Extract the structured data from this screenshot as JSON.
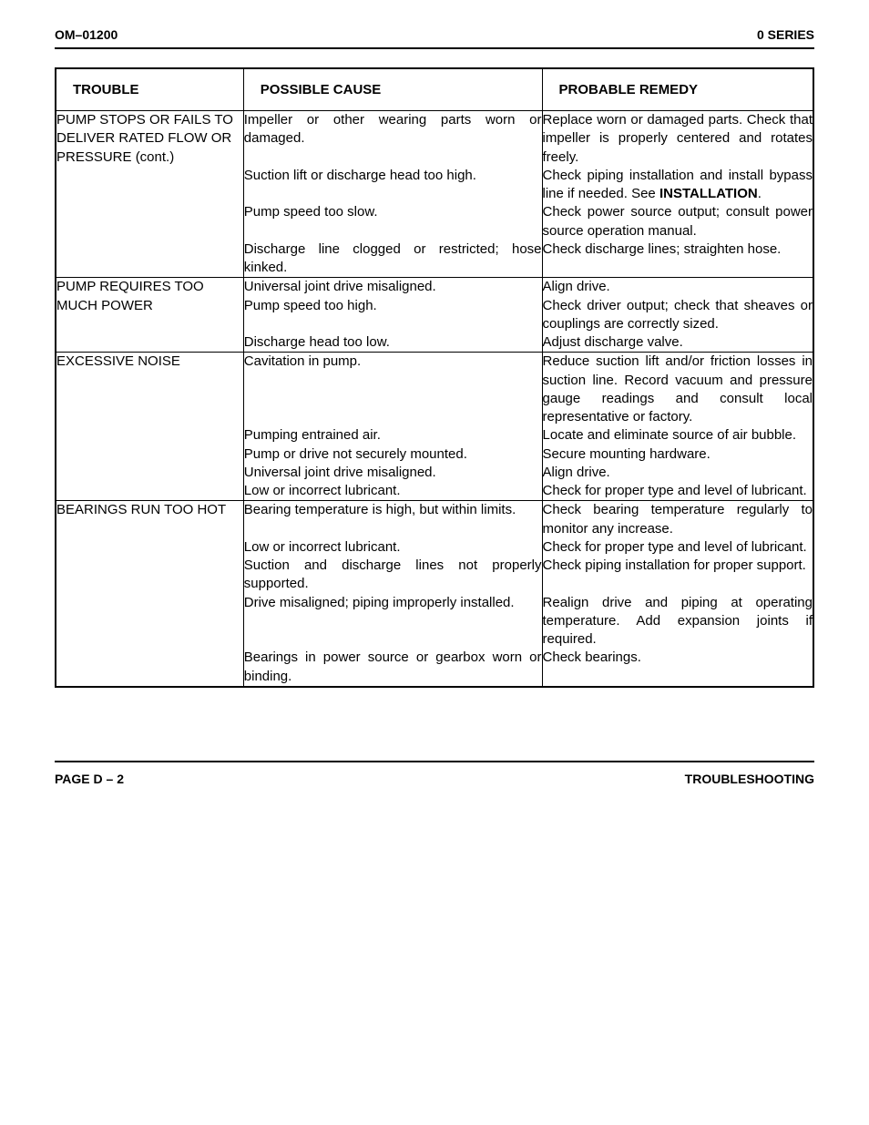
{
  "header": {
    "left": "OM–01200",
    "right": "0 SERIES"
  },
  "columns": {
    "trouble": "TROUBLE",
    "cause": "POSSIBLE CAUSE",
    "remedy": "PROBABLE REMEDY"
  },
  "sections": [
    {
      "trouble": "PUMP STOPS OR FAILS TO DELIVER RATED FLOW OR PRESSURE (cont.)",
      "rows": [
        {
          "cause": "Impeller or other wearing parts worn or damaged.",
          "remedy": "Replace worn or damaged parts. Check that impeller is properly centered and rotates freely."
        },
        {
          "cause": "Suction lift or discharge head too high.",
          "remedy_html": "Check piping installation and install bypass line if needed. See <span class=\"bold\">INSTALLATION</span>."
        },
        {
          "cause": "Pump speed too slow.",
          "remedy": "Check power source output; consult power source operation manual."
        },
        {
          "cause": "Discharge line clogged or restricted; hose kinked.",
          "remedy": "Check discharge lines; straighten hose."
        }
      ]
    },
    {
      "trouble": "PUMP REQUIRES TOO MUCH POWER",
      "rows": [
        {
          "cause": "Universal joint drive misaligned.",
          "remedy": "Align drive."
        },
        {
          "cause": "Pump speed too high.",
          "remedy": "Check driver output; check that sheaves or couplings are correctly sized."
        },
        {
          "cause": "Discharge head too low.",
          "remedy": "Adjust discharge valve."
        }
      ]
    },
    {
      "trouble": "EXCESSIVE NOISE",
      "rows": [
        {
          "cause": "Cavitation in pump.",
          "remedy": "Reduce suction lift and/or friction losses in suction line. Record vacuum and pressure gauge readings and consult local representative or factory."
        },
        {
          "cause": "Pumping entrained air.",
          "remedy": "Locate and eliminate source of air bubble."
        },
        {
          "cause": "Pump or drive not securely mounted.",
          "remedy": "Secure mounting hardware."
        },
        {
          "cause": "Universal joint drive misaligned.",
          "remedy": "Align drive."
        },
        {
          "cause": "Low or incorrect lubricant.",
          "remedy": "Check for proper type and level of lubricant."
        }
      ]
    },
    {
      "trouble": "BEARINGS RUN TOO HOT",
      "rows": [
        {
          "cause": "Bearing temperature is high, but within limits.",
          "remedy": "Check bearing temperature regularly to monitor any increase."
        },
        {
          "cause": "Low or incorrect lubricant.",
          "remedy": "Check for proper type and level of lubricant."
        },
        {
          "cause": "Suction and discharge lines not properly supported.",
          "remedy": "Check piping installation for proper support."
        },
        {
          "cause": "Drive misaligned; piping improperly installed.",
          "remedy": "Realign drive and piping at operating temperature. Add expansion joints if required."
        },
        {
          "cause": "Bearings in power source or gearbox worn or binding.",
          "remedy": "Check bearings."
        }
      ]
    }
  ],
  "footer": {
    "left": "PAGE D – 2",
    "right": "TROUBLESHOOTING"
  }
}
